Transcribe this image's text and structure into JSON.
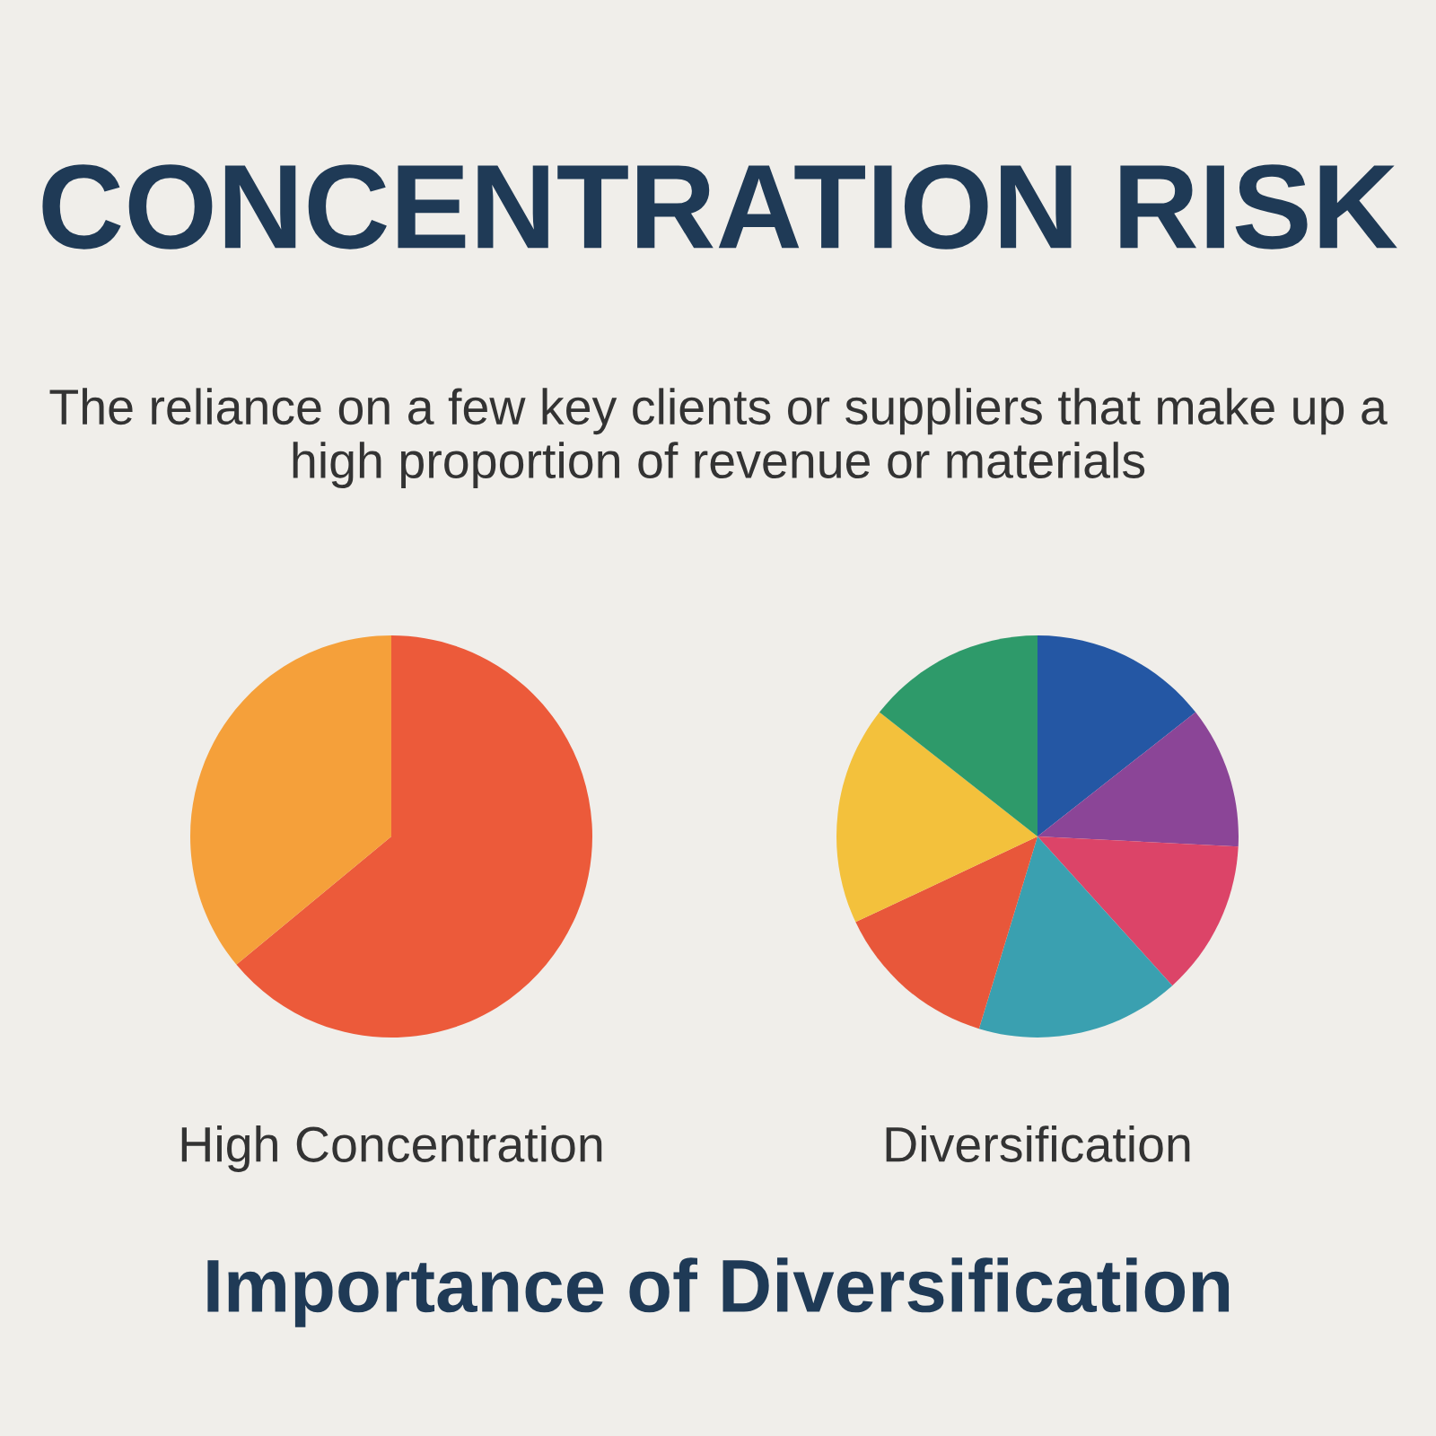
{
  "chart_data": [
    {
      "type": "pie",
      "title": "CONCENTRATION RISK",
      "subtitle": "The reliance on a few key clients or suppliers that make up a high proportion of revenue or materials",
      "xlabel": "High Concentration",
      "annotations": [
        "Importance of Diversification"
      ],
      "categories": [
        null,
        null
      ],
      "values": [
        64,
        36
      ],
      "colors": [
        "#ec5a3a",
        "#f5a03a"
      ]
    },
    {
      "type": "pie",
      "xlabel": "Diversification",
      "categories": [
        null,
        null,
        null,
        null,
        null,
        null,
        null
      ],
      "values": [
        14.4,
        11.4,
        12.5,
        16.4,
        13.3,
        17.6,
        14.4
      ],
      "colors": [
        "#2457a4",
        "#8b4597",
        "#dc4468",
        "#3aa0b0",
        "#e8573a",
        "#f3c13c",
        "#2e9a6a"
      ]
    }
  ]
}
